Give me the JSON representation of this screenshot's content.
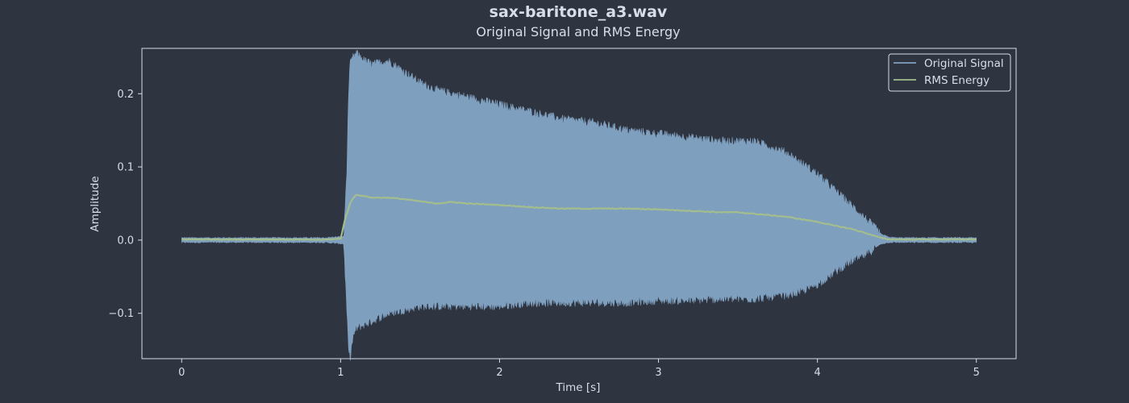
{
  "title": "sax-baritone_a3.wav",
  "subtitle": "Original Signal and RMS Energy",
  "colors": {
    "background": "#2e3440",
    "frame": "#d8dee9",
    "text": "#d8dee9",
    "signal": "#81a1c1",
    "signal_fill": "#81a1c1",
    "rms": "#a3be8c"
  },
  "chart_data": {
    "type": "area",
    "xlabel": "Time [s]",
    "ylabel": "Amplitude",
    "xlim": [
      -0.25,
      5.25
    ],
    "ylim": [
      -0.162,
      0.262
    ],
    "grid": false,
    "legend_position": "top-right",
    "x_ticks": [
      0,
      1,
      2,
      3,
      4,
      5
    ],
    "x_tick_labels": [
      "0",
      "1",
      "2",
      "3",
      "4",
      "5"
    ],
    "y_ticks": [
      -0.1,
      0.0,
      0.1,
      0.2
    ],
    "y_tick_labels": [
      "−0.1",
      "0.0",
      "0.1",
      "0.2"
    ],
    "series": [
      {
        "name": "Original Signal",
        "kind": "envelope",
        "x": [
          0,
          0.5,
          0.9,
          1.02,
          1.04,
          1.05,
          1.06,
          1.08,
          1.1,
          1.15,
          1.2,
          1.3,
          1.4,
          1.5,
          1.6,
          1.8,
          2.0,
          2.2,
          2.4,
          2.6,
          2.8,
          3.0,
          3.2,
          3.4,
          3.6,
          3.8,
          3.9,
          4.0,
          4.1,
          4.2,
          4.3,
          4.4,
          4.45,
          4.5,
          5.0
        ],
        "upper": [
          0.003,
          0.003,
          0.003,
          0.005,
          0.1,
          0.2,
          0.24,
          0.25,
          0.255,
          0.245,
          0.24,
          0.245,
          0.23,
          0.215,
          0.205,
          0.195,
          0.185,
          0.175,
          0.165,
          0.16,
          0.15,
          0.145,
          0.14,
          0.135,
          0.135,
          0.12,
          0.105,
          0.09,
          0.07,
          0.05,
          0.03,
          0.008,
          0.004,
          0.003,
          0.003
        ],
        "lower": [
          -0.003,
          -0.003,
          -0.003,
          -0.005,
          -0.1,
          -0.15,
          -0.16,
          -0.13,
          -0.12,
          -0.115,
          -0.11,
          -0.1,
          -0.095,
          -0.09,
          -0.09,
          -0.09,
          -0.09,
          -0.085,
          -0.085,
          -0.085,
          -0.085,
          -0.082,
          -0.082,
          -0.08,
          -0.08,
          -0.075,
          -0.07,
          -0.06,
          -0.045,
          -0.03,
          -0.02,
          -0.005,
          -0.003,
          -0.003,
          -0.003
        ]
      },
      {
        "name": "RMS Energy",
        "kind": "line",
        "x": [
          0,
          0.5,
          0.9,
          1.0,
          1.03,
          1.06,
          1.08,
          1.1,
          1.15,
          1.2,
          1.3,
          1.4,
          1.5,
          1.6,
          1.7,
          1.8,
          2.0,
          2.2,
          2.4,
          2.6,
          2.8,
          3.0,
          3.2,
          3.4,
          3.5,
          3.6,
          3.8,
          4.0,
          4.1,
          4.2,
          4.3,
          4.4,
          4.45,
          4.5,
          5.0
        ],
        "values": [
          0.001,
          0.001,
          0.0005,
          0.002,
          0.03,
          0.05,
          0.058,
          0.062,
          0.06,
          0.058,
          0.058,
          0.056,
          0.053,
          0.05,
          0.052,
          0.05,
          0.048,
          0.045,
          0.043,
          0.043,
          0.043,
          0.042,
          0.04,
          0.038,
          0.038,
          0.036,
          0.032,
          0.025,
          0.02,
          0.016,
          0.01,
          0.003,
          0.001,
          0.001,
          0.001
        ]
      }
    ]
  }
}
